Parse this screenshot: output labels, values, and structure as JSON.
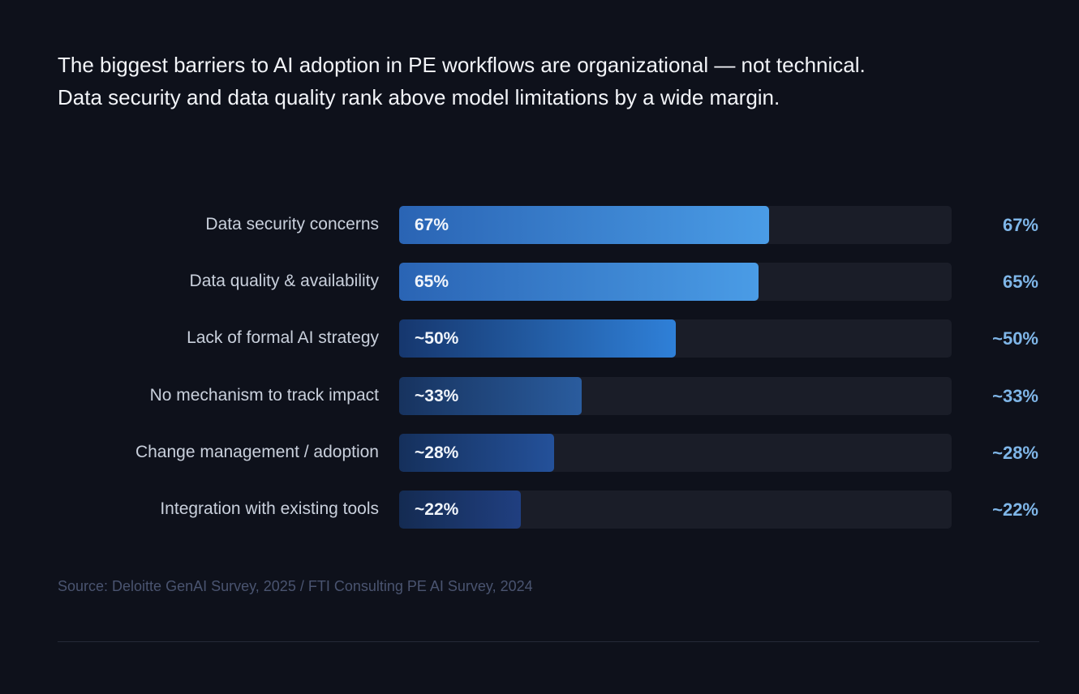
{
  "headline": "The biggest barriers to AI adoption in PE workflows are organizational — not technical. Data security and data quality rank above model limitations by a wide margin.",
  "source": "Source: Deloitte GenAI Survey, 2025 / FTI Consulting PE AI Survey, 2024",
  "colors": {
    "background": "#0e111b",
    "track": "#1a1d28",
    "value_text": "#7fb6e8"
  },
  "chart_data": {
    "type": "bar",
    "orientation": "horizontal",
    "categories": [
      "Data security concerns",
      "Data quality & availability",
      "Lack of formal AI strategy",
      "No mechanism to track impact",
      "Change management / adoption",
      "Integration with existing tools"
    ],
    "values": [
      67,
      65,
      50,
      33,
      28,
      22
    ],
    "value_labels": [
      "67%",
      "65%",
      "~50%",
      "~33%",
      "~28%",
      "~22%"
    ],
    "xlim": [
      0,
      100
    ],
    "grid": false,
    "legend": "none"
  }
}
